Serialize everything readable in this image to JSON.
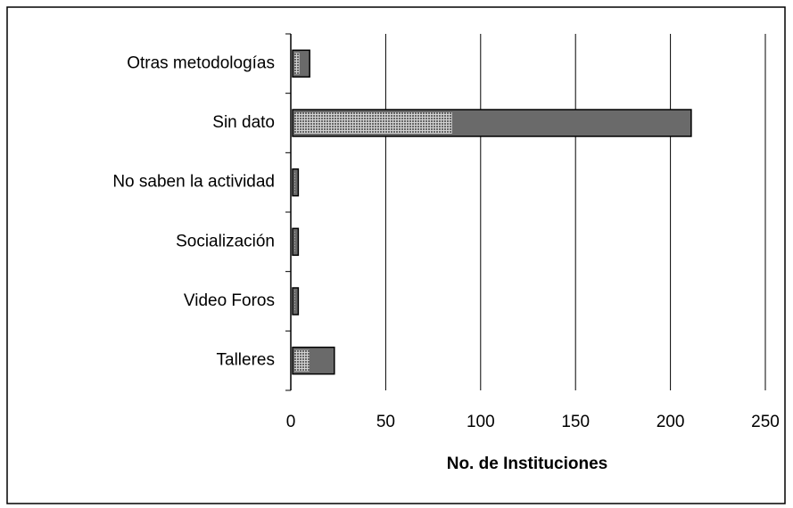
{
  "chart_data": {
    "type": "barh",
    "categories": [
      "Otras metodologías",
      "Sin dato",
      "No saben la actividad",
      "Socialización",
      "Video Foros",
      "Talleres"
    ],
    "values": [
      9,
      210,
      3,
      3,
      3,
      22
    ],
    "color": "#6a6a6a",
    "xlabel": "No. de Instituciones",
    "xlim": [
      0,
      250
    ],
    "xticks": [
      0,
      50,
      100,
      150,
      200,
      250
    ],
    "grid": true
  }
}
